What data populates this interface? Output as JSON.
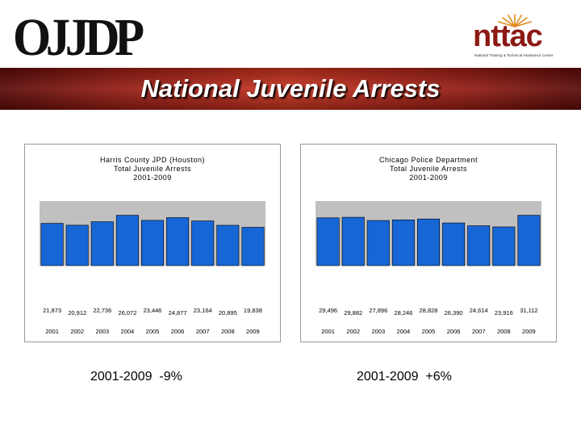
{
  "header": {
    "logo_left": "OJJDP",
    "logo_right": "nttac",
    "logo_right_subtitle": "National Training & Technical Assistance Center",
    "title": "National Juvenile Arrests"
  },
  "colors": {
    "bar": "#1666d6",
    "bar_edge": "#000000",
    "plot_bg": "#c0c0c0",
    "banner": "#b3281a"
  },
  "chart_data": [
    {
      "type": "bar",
      "title": "Harris County JPD (Houston)",
      "subtitle": "Total Juvenile Arrests",
      "period": "2001-2009",
      "categories": [
        "2001",
        "2002",
        "2003",
        "2004",
        "2005",
        "2006",
        "2007",
        "2008",
        "2009"
      ],
      "values": [
        21873,
        20912,
        22736,
        26072,
        23446,
        24877,
        23164,
        20895,
        19838
      ],
      "labels": [
        "21,873",
        "20,912",
        "22,736",
        "26,072",
        "23,446",
        "24,877",
        "23,164",
        "20,895",
        "19,838"
      ],
      "change_note": "2001-2009  -9%"
    },
    {
      "type": "bar",
      "title": "Chicago Police Department",
      "subtitle": "Total Juvenile Arrests",
      "period": "2001-2009",
      "categories": [
        "2001",
        "2002",
        "2003",
        "2004",
        "2005",
        "2006",
        "2007",
        "2008",
        "2009"
      ],
      "values": [
        29496,
        29882,
        27896,
        28246,
        28828,
        26390,
        24614,
        23916,
        31112
      ],
      "labels": [
        "29,496",
        "29,882",
        "27,896",
        "28,246",
        "28,828",
        "26,390",
        "24,614",
        "23,916",
        "31,112"
      ],
      "change_note": "2001-2009  +6%"
    }
  ]
}
